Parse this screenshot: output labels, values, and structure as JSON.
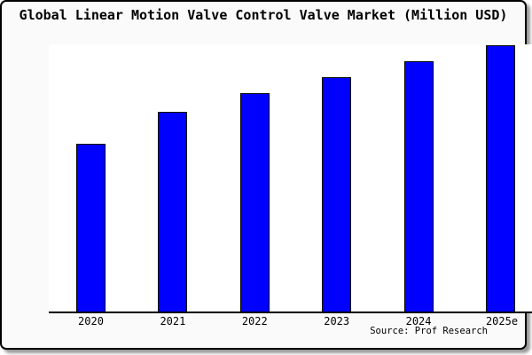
{
  "title": "Global Linear Motion Valve Control Valve Market (Million USD)",
  "source": "Source: Prof Research",
  "colors": {
    "bar_fill": "#0000ff",
    "bar_border": "#000000",
    "figure_background": "#fafafa",
    "plot_background": "#ffffff",
    "frame_border": "#000000",
    "text": "#000000"
  },
  "chart_data": {
    "type": "bar",
    "title": "Global Linear Motion Valve Control Valve Market (Million USD)",
    "categories": [
      "2020",
      "2021",
      "2022",
      "2023",
      "2024",
      "2025e"
    ],
    "values": [
      63,
      75,
      82,
      88,
      94,
      100
    ],
    "value_scale": "relative units; y-axis is unlabeled in the chart, values estimated from bar heights with 2025e = 100",
    "xlabel": "",
    "ylabel": "",
    "ylim": [
      0,
      100.3
    ],
    "grid": false,
    "legend": false,
    "annotations": [
      "Source: Prof Research"
    ]
  }
}
